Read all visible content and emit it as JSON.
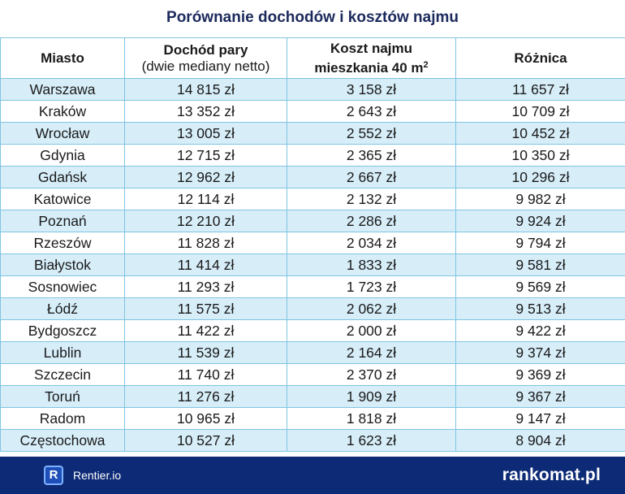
{
  "title": "Porównanie dochodów i kosztów najmu",
  "chart_data": {
    "type": "table",
    "title": "Porównanie dochodów i kosztów najmu",
    "columns": [
      {
        "main": "Miasto",
        "sub": ""
      },
      {
        "main": "Dochód pary",
        "sub": "(dwie mediany netto)"
      },
      {
        "main": "Koszt najmu",
        "sub": "mieszkania 40 m",
        "sup": "2"
      },
      {
        "main": "Różnica",
        "sub": ""
      }
    ],
    "rows": [
      [
        "Warszawa",
        "14 815 zł",
        "3 158 zł",
        "11 657 zł"
      ],
      [
        "Kraków",
        "13 352 zł",
        "2 643 zł",
        "10 709 zł"
      ],
      [
        "Wrocław",
        "13 005 zł",
        "2 552 zł",
        "10 452 zł"
      ],
      [
        "Gdynia",
        "12 715 zł",
        "2 365 zł",
        "10 350 zł"
      ],
      [
        "Gdańsk",
        "12 962 zł",
        "2 667 zł",
        "10 296 zł"
      ],
      [
        "Katowice",
        "12 114 zł",
        "2 132 zł",
        "9 982 zł"
      ],
      [
        "Poznań",
        "12 210 zł",
        "2 286 zł",
        "9 924 zł"
      ],
      [
        "Rzeszów",
        "11 828 zł",
        "2 034 zł",
        "9 794 zł"
      ],
      [
        "Białystok",
        "11 414 zł",
        "1 833 zł",
        "9 581 zł"
      ],
      [
        "Sosnowiec",
        "11 293 zł",
        "1 723 zł",
        "9 569 zł"
      ],
      [
        "Łódź",
        "11 575 zł",
        "2 062 zł",
        "9 513 zł"
      ],
      [
        "Bydgoszcz",
        "11 422 zł",
        "2 000 zł",
        "9 422 zł"
      ],
      [
        "Lublin",
        "11 539 zł",
        "2 164 zł",
        "9 374 zł"
      ],
      [
        "Szczecin",
        "11 740 zł",
        "2 370 zł",
        "9 369 zł"
      ],
      [
        "Toruń",
        "11 276 zł",
        "1 909 zł",
        "9 367 zł"
      ],
      [
        "Radom",
        "10 965 zł",
        "1 818 zł",
        "9 147 zł"
      ],
      [
        "Częstochowa",
        "10 527 zł",
        "1 623 zł",
        "8 904 zł"
      ]
    ]
  },
  "footer": {
    "left_logo_letter": "R",
    "left_name": "Rentier.io",
    "right_brand": "rankomat.pl"
  },
  "colors": {
    "title": "#1c2a5c",
    "row_stripe": "#d7eef9",
    "grid": "#7fc4e2",
    "footer_bg": "#0d2a76"
  }
}
